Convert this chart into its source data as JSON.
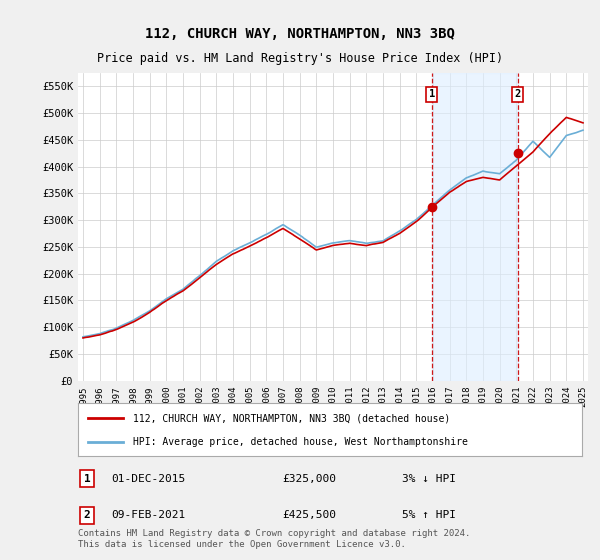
{
  "title": "112, CHURCH WAY, NORTHAMPTON, NN3 3BQ",
  "subtitle": "Price paid vs. HM Land Registry's House Price Index (HPI)",
  "ylim": [
    0,
    575000
  ],
  "yticks": [
    0,
    50000,
    100000,
    150000,
    200000,
    250000,
    300000,
    350000,
    400000,
    450000,
    500000,
    550000
  ],
  "xlim_start": 1994.7,
  "xlim_end": 2025.3,
  "xticks": [
    1995,
    1996,
    1997,
    1998,
    1999,
    2000,
    2001,
    2002,
    2003,
    2004,
    2005,
    2006,
    2007,
    2008,
    2009,
    2010,
    2011,
    2012,
    2013,
    2014,
    2015,
    2016,
    2017,
    2018,
    2019,
    2020,
    2021,
    2022,
    2023,
    2024,
    2025
  ],
  "hpi_color": "#6aaed6",
  "price_color": "#cc0000",
  "shade_color": "#ddeeff",
  "marker1_year": 2015.92,
  "marker2_year": 2021.08,
  "marker1_price": 325000,
  "marker2_price": 425500,
  "legend_label1": "112, CHURCH WAY, NORTHAMPTON, NN3 3BQ (detached house)",
  "legend_label2": "HPI: Average price, detached house, West Northamptonshire",
  "transaction1_date": "01-DEC-2015",
  "transaction1_price": "£325,000",
  "transaction1_hpi": "3% ↓ HPI",
  "transaction2_date": "09-FEB-2021",
  "transaction2_price": "£425,500",
  "transaction2_hpi": "5% ↑ HPI",
  "footer": "Contains HM Land Registry data © Crown copyright and database right 2024.\nThis data is licensed under the Open Government Licence v3.0.",
  "bg_color": "#f0f0f0",
  "plot_bg_color": "#ffffff",
  "grid_color": "#cccccc"
}
